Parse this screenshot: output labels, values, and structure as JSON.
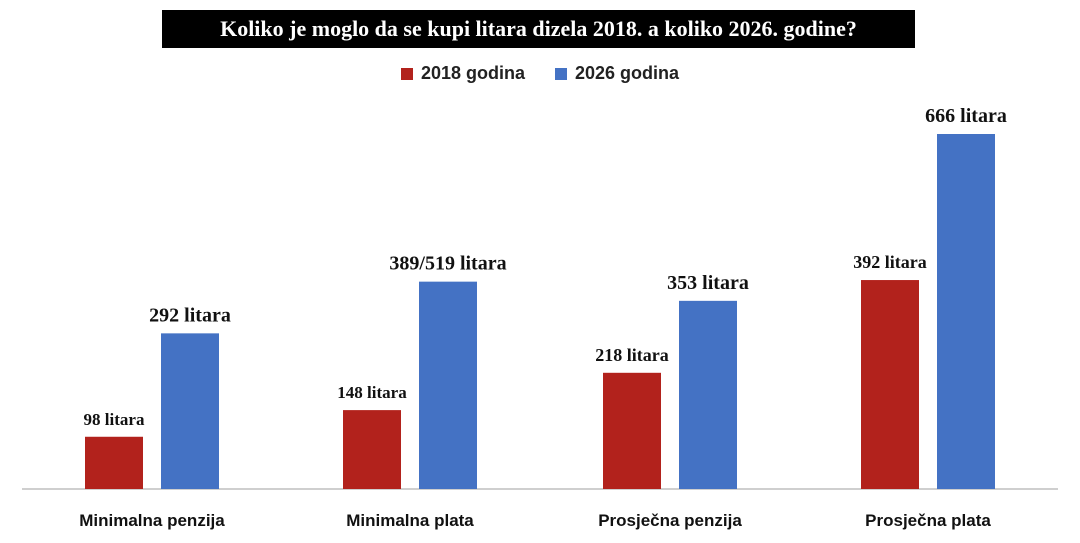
{
  "chart_data": {
    "type": "bar",
    "title": "Koliko je moglo da se kupi litara dizela 2018. a koliko 2026. godine?",
    "categories": [
      "Minimalna penzija",
      "Minimalna plata",
      "Prosječna penzija",
      "Prosječna plata"
    ],
    "series": [
      {
        "name": "2018 godina",
        "color": "#B2221C",
        "values": [
          98,
          148,
          218,
          392
        ],
        "labels": [
          "98 litara",
          "148 litara",
          "218 litara",
          "392 litara"
        ]
      },
      {
        "name": "2026 godina",
        "color": "#4472C4",
        "values": [
          292,
          389,
          353,
          666
        ],
        "labels": [
          "292 litara",
          "389/519 litara",
          "353 litara",
          "666 litara"
        ]
      }
    ],
    "legend_position": "top-center",
    "gridlines": false,
    "ylim": [
      0,
      680
    ]
  }
}
